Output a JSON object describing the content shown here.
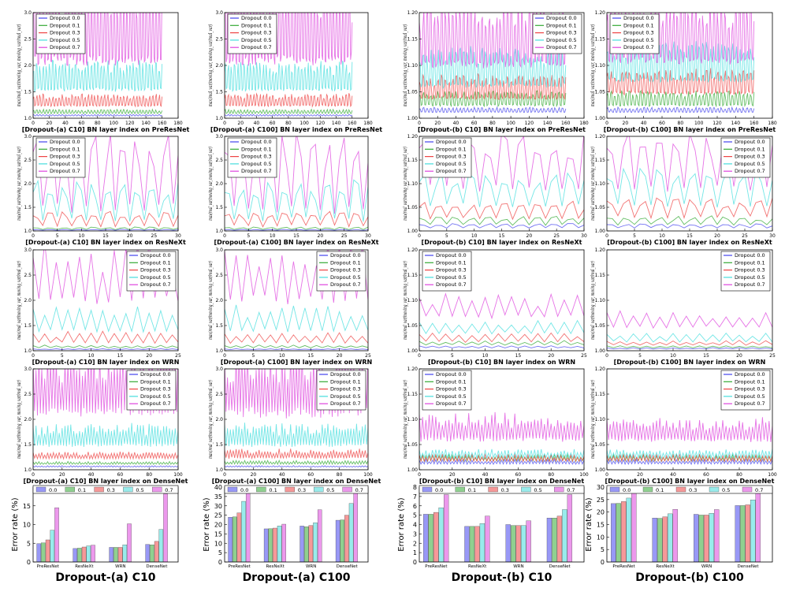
{
  "figure": {
    "line_series_legend": [
      "Dropout 0.0",
      "Dropout 0.1",
      "Dropout 0.3",
      "Dropout 0.5",
      "Dropout 0.7"
    ],
    "bar_legend": [
      "0.0",
      "0.1",
      "0.3",
      "0.5",
      "0.7"
    ],
    "line_ylabel": "max(real_var/moving_var, moving_var/real_var)",
    "bar_ylabel": "Error rate (%)",
    "colors": [
      "#4444ee",
      "#33aa33",
      "#ee4444",
      "#44dddd",
      "#dd44dd"
    ]
  },
  "chart_data": [
    {
      "type": "line",
      "title": "[Dropout-(a) C10] BN layer index on PreResNet",
      "xlim": [
        0,
        180
      ],
      "ylim": [
        1.0,
        3.0
      ],
      "xticks": [
        0,
        20,
        40,
        60,
        80,
        100,
        120,
        140,
        160,
        180
      ],
      "yticks": [
        1.0,
        1.5,
        2.0,
        2.5,
        3.0
      ],
      "n": 160,
      "base": [
        1.04,
        1.08,
        1.2,
        1.45,
        1.85
      ],
      "amp": [
        0.03,
        0.08,
        0.25,
        0.6,
        1.6
      ],
      "period": 4,
      "legend": "top-left"
    },
    {
      "type": "line",
      "title": "[Dropout-(a) C100] BN layer index on PreResNet",
      "xlim": [
        0,
        180
      ],
      "ylim": [
        1.0,
        3.0
      ],
      "xticks": [
        0,
        20,
        40,
        60,
        80,
        100,
        120,
        140,
        160,
        180
      ],
      "yticks": [
        1.0,
        1.5,
        2.0,
        2.5,
        3.0
      ],
      "n": 160,
      "base": [
        1.04,
        1.08,
        1.2,
        1.45,
        1.85
      ],
      "amp": [
        0.03,
        0.08,
        0.25,
        0.6,
        1.6
      ],
      "period": 4,
      "legend": "top-left"
    },
    {
      "type": "line",
      "title": "[Dropout-(b) C10] BN layer index on PreResNet",
      "xlim": [
        0,
        180
      ],
      "ylim": [
        1.0,
        1.2
      ],
      "xticks": [
        0,
        20,
        40,
        60,
        80,
        100,
        120,
        140,
        160,
        180
      ],
      "yticks": [
        1.0,
        1.05,
        1.1,
        1.15,
        1.2
      ],
      "n": 160,
      "base": [
        1.01,
        1.02,
        1.03,
        1.05,
        1.08
      ],
      "amp": [
        0.01,
        0.03,
        0.05,
        0.08,
        0.14
      ],
      "period": 4,
      "legend": "top-right"
    },
    {
      "type": "line",
      "title": "[Dropout-(b) C100] BN layer index on PreResNet",
      "xlim": [
        0,
        180
      ],
      "ylim": [
        1.0,
        1.2
      ],
      "xticks": [
        0,
        20,
        40,
        60,
        80,
        100,
        120,
        140,
        160,
        180
      ],
      "yticks": [
        1.0,
        1.05,
        1.1,
        1.15,
        1.2
      ],
      "n": 160,
      "base": [
        1.01,
        1.02,
        1.04,
        1.06,
        1.09
      ],
      "amp": [
        0.01,
        0.03,
        0.05,
        0.08,
        0.13
      ],
      "period": 4,
      "legend": "top-left"
    },
    {
      "type": "line",
      "title": "[Dropout-(a) C10] BN layer index on ResNeXt",
      "xlim": [
        0,
        30
      ],
      "ylim": [
        1.0,
        3.0
      ],
      "xticks": [
        0,
        5,
        10,
        15,
        20,
        25,
        30
      ],
      "yticks": [
        1.0,
        1.5,
        2.0,
        2.5,
        3.0
      ],
      "n": 30,
      "base": [
        1.01,
        1.02,
        1.05,
        1.1,
        1.2
      ],
      "amp": [
        0.02,
        0.06,
        0.35,
        0.9,
        1.8
      ],
      "period": 3,
      "legend": "top-left"
    },
    {
      "type": "line",
      "title": "[Dropout-(a) C100] BN layer index on ResNeXt",
      "xlim": [
        0,
        30
      ],
      "ylim": [
        1.0,
        3.0
      ],
      "xticks": [
        0,
        5,
        10,
        15,
        20,
        25,
        30
      ],
      "yticks": [
        1.0,
        1.5,
        2.0,
        2.5,
        3.0
      ],
      "n": 30,
      "base": [
        1.01,
        1.02,
        1.05,
        1.1,
        1.2
      ],
      "amp": [
        0.02,
        0.06,
        0.35,
        0.9,
        1.8
      ],
      "period": 3,
      "legend": "top-left"
    },
    {
      "type": "line",
      "title": "[Dropout-(b) C10] BN layer index on ResNeXt",
      "xlim": [
        0,
        30
      ],
      "ylim": [
        1.0,
        1.2
      ],
      "xticks": [
        0,
        5,
        10,
        15,
        20,
        25,
        30
      ],
      "yticks": [
        1.0,
        1.05,
        1.1,
        1.15,
        1.2
      ],
      "n": 30,
      "base": [
        1.005,
        1.01,
        1.02,
        1.04,
        1.07
      ],
      "amp": [
        0.01,
        0.02,
        0.04,
        0.08,
        0.13
      ],
      "period": 3,
      "legend": "top-left"
    },
    {
      "type": "line",
      "title": "[Dropout-(b) C100] BN layer index on ResNeXt",
      "xlim": [
        0,
        30
      ],
      "ylim": [
        1.0,
        1.2
      ],
      "xticks": [
        0,
        5,
        10,
        15,
        20,
        25,
        30
      ],
      "yticks": [
        1.0,
        1.05,
        1.1,
        1.15,
        1.2
      ],
      "n": 30,
      "base": [
        1.005,
        1.01,
        1.02,
        1.04,
        1.07
      ],
      "amp": [
        0.01,
        0.02,
        0.05,
        0.09,
        0.13
      ],
      "period": 3,
      "legend": "top-right"
    },
    {
      "type": "line",
      "title": "[Dropout-(a) C10] BN layer index on WRN",
      "xlim": [
        0,
        25
      ],
      "ylim": [
        1.0,
        3.0
      ],
      "xticks": [
        0,
        5,
        10,
        15,
        20,
        25
      ],
      "yticks": [
        1.0,
        1.5,
        2.0,
        2.5,
        3.0
      ],
      "n": 25,
      "base": [
        1.02,
        1.05,
        1.12,
        1.3,
        1.8
      ],
      "amp": [
        0.02,
        0.06,
        0.25,
        0.6,
        1.3
      ],
      "period": 2,
      "legend": "top-right"
    },
    {
      "type": "line",
      "title": "[Dropout-(a) C100] BN layer index on WRN",
      "xlim": [
        0,
        25
      ],
      "ylim": [
        1.0,
        3.0
      ],
      "xticks": [
        0,
        5,
        10,
        15,
        20,
        25
      ],
      "yticks": [
        1.0,
        1.5,
        2.0,
        2.5,
        3.0
      ],
      "n": 25,
      "base": [
        1.02,
        1.05,
        1.12,
        1.3,
        1.8
      ],
      "amp": [
        0.02,
        0.06,
        0.25,
        0.6,
        1.3
      ],
      "period": 2,
      "legend": "top-right"
    },
    {
      "type": "line",
      "title": "[Dropout-(b) C10] BN layer index on WRN",
      "xlim": [
        0,
        25
      ],
      "ylim": [
        1.0,
        1.2
      ],
      "xticks": [
        0,
        5,
        10,
        15,
        20,
        25
      ],
      "yticks": [
        1.0,
        1.05,
        1.1,
        1.15,
        1.2
      ],
      "n": 25,
      "base": [
        1.005,
        1.01,
        1.015,
        1.03,
        1.06
      ],
      "amp": [
        0.005,
        0.01,
        0.02,
        0.03,
        0.05
      ],
      "period": 2,
      "legend": "top-left"
    },
    {
      "type": "line",
      "title": "[Dropout-(b) C100] BN layer index on WRN",
      "xlim": [
        0,
        25
      ],
      "ylim": [
        1.0,
        1.2
      ],
      "xticks": [
        0,
        5,
        10,
        15,
        20,
        25
      ],
      "yticks": [
        1.0,
        1.05,
        1.1,
        1.15,
        1.2
      ],
      "n": 25,
      "base": [
        1.003,
        1.005,
        1.01,
        1.015,
        1.04
      ],
      "amp": [
        0.003,
        0.005,
        0.01,
        0.02,
        0.04
      ],
      "period": 2,
      "legend": "top-right"
    },
    {
      "type": "line",
      "title": "[Dropout-(a) C10] BN layer index on DenseNet",
      "xlim": [
        0,
        100
      ],
      "ylim": [
        1.0,
        3.0
      ],
      "xticks": [
        0,
        20,
        40,
        60,
        80,
        100
      ],
      "yticks": [
        1.0,
        1.5,
        2.0,
        2.5,
        3.0
      ],
      "n": 100,
      "base": [
        1.05,
        1.1,
        1.2,
        1.4,
        1.9
      ],
      "amp": [
        0.03,
        0.06,
        0.15,
        0.5,
        1.4
      ],
      "period": 2,
      "legend": "top-right"
    },
    {
      "type": "line",
      "title": "[Dropout-(a) C100] BN layer index on DenseNet",
      "xlim": [
        0,
        100
      ],
      "ylim": [
        1.0,
        3.0
      ],
      "xticks": [
        0,
        20,
        40,
        60,
        80,
        100
      ],
      "yticks": [
        1.0,
        1.5,
        2.0,
        2.5,
        3.0
      ],
      "n": 100,
      "base": [
        1.05,
        1.1,
        1.2,
        1.4,
        1.9
      ],
      "amp": [
        0.03,
        0.08,
        0.2,
        0.5,
        1.4
      ],
      "period": 2,
      "legend": "top-right"
    },
    {
      "type": "line",
      "title": "[Dropout-(b) C10] BN layer index on DenseNet",
      "xlim": [
        0,
        100
      ],
      "ylim": [
        1.0,
        1.2
      ],
      "xticks": [
        0,
        20,
        40,
        60,
        80,
        100
      ],
      "yticks": [
        1.0,
        1.05,
        1.1,
        1.15,
        1.2
      ],
      "n": 100,
      "base": [
        1.01,
        1.015,
        1.015,
        1.02,
        1.05
      ],
      "amp": [
        0.01,
        0.015,
        0.015,
        0.02,
        0.06
      ],
      "period": 2,
      "legend": "top-left"
    },
    {
      "type": "line",
      "title": "[Dropout-(b) C100] BN layer index on DenseNet",
      "xlim": [
        0,
        100
      ],
      "ylim": [
        1.0,
        1.2
      ],
      "xticks": [
        0,
        20,
        40,
        60,
        80,
        100
      ],
      "yticks": [
        1.0,
        1.05,
        1.1,
        1.15,
        1.2
      ],
      "n": 100,
      "base": [
        1.01,
        1.015,
        1.015,
        1.02,
        1.05
      ],
      "amp": [
        0.01,
        0.015,
        0.015,
        0.02,
        0.05
      ],
      "period": 2,
      "legend": "top-right"
    },
    {
      "type": "bar",
      "title": "Dropout-(a) C10",
      "categories": [
        "PreResNet",
        "ResNeXt",
        "WRN",
        "DenseNet"
      ],
      "ylim": [
        0,
        20
      ],
      "yticks": [
        0,
        5,
        10,
        15
      ],
      "ylabel": "Error rate (%)",
      "series": [
        {
          "name": "0.0",
          "values": [
            4.9,
            3.6,
            3.9,
            4.7
          ]
        },
        {
          "name": "0.1",
          "values": [
            5.1,
            3.7,
            3.9,
            4.6
          ]
        },
        {
          "name": "0.3",
          "values": [
            5.9,
            4.0,
            3.9,
            5.5
          ]
        },
        {
          "name": "0.5",
          "values": [
            8.5,
            4.3,
            4.6,
            8.7
          ]
        },
        {
          "name": "0.7",
          "values": [
            14.5,
            4.5,
            10.2,
            18.2
          ]
        }
      ]
    },
    {
      "type": "bar",
      "title": "Dropout-(a) C100",
      "categories": [
        "PreResNet",
        "ResNeXt",
        "WRN",
        "DenseNet"
      ],
      "ylim": [
        0,
        40
      ],
      "yticks": [
        0,
        5,
        10,
        15,
        20,
        25,
        30,
        35,
        40
      ],
      "ylabel": "Error rate (%)",
      "series": [
        {
          "name": "0.0",
          "values": [
            23.9,
            17.7,
            19.2,
            22.3
          ]
        },
        {
          "name": "0.1",
          "values": [
            24.1,
            17.8,
            18.8,
            22.5
          ]
        },
        {
          "name": "0.3",
          "values": [
            26.2,
            18.1,
            19.5,
            25.0
          ]
        },
        {
          "name": "0.5",
          "values": [
            32.4,
            19.3,
            21.0,
            31.3
          ]
        },
        {
          "name": "0.7",
          "values": [
            39.5,
            20.2,
            27.9,
            39.5
          ]
        }
      ]
    },
    {
      "type": "bar",
      "title": "Dropout-(b) C10",
      "categories": [
        "PreResNet",
        "ResNeXt",
        "WRN",
        "DenseNet"
      ],
      "ylim": [
        0,
        8
      ],
      "yticks": [
        0,
        1,
        2,
        3,
        4,
        5,
        6,
        7,
        8
      ],
      "ylabel": "Error rate (%)",
      "series": [
        {
          "name": "0.0",
          "values": [
            5.1,
            3.8,
            4.0,
            4.7
          ]
        },
        {
          "name": "0.1",
          "values": [
            5.1,
            3.8,
            3.9,
            4.7
          ]
        },
        {
          "name": "0.3",
          "values": [
            5.3,
            3.8,
            3.9,
            4.9
          ]
        },
        {
          "name": "0.5",
          "values": [
            5.8,
            4.1,
            3.9,
            5.6
          ]
        },
        {
          "name": "0.7",
          "values": [
            7.2,
            4.9,
            4.4,
            7.2
          ]
        }
      ]
    },
    {
      "type": "bar",
      "title": "Dropout-(b) C100",
      "categories": [
        "PreResNet",
        "ResNeXt",
        "WRN",
        "DenseNet"
      ],
      "ylim": [
        0,
        30
      ],
      "yticks": [
        0,
        5,
        10,
        15,
        20,
        25,
        30
      ],
      "ylabel": "Error rate (%)",
      "series": [
        {
          "name": "0.0",
          "values": [
            23.4,
            17.6,
            19.1,
            22.6
          ]
        },
        {
          "name": "0.1",
          "values": [
            23.5,
            17.5,
            18.8,
            22.6
          ]
        },
        {
          "name": "0.3",
          "values": [
            24.2,
            18.1,
            18.8,
            22.9
          ]
        },
        {
          "name": "0.5",
          "values": [
            25.6,
            19.3,
            19.5,
            24.9
          ]
        },
        {
          "name": "0.7",
          "values": [
            27.6,
            21.1,
            21.0,
            27.5
          ]
        }
      ]
    }
  ]
}
